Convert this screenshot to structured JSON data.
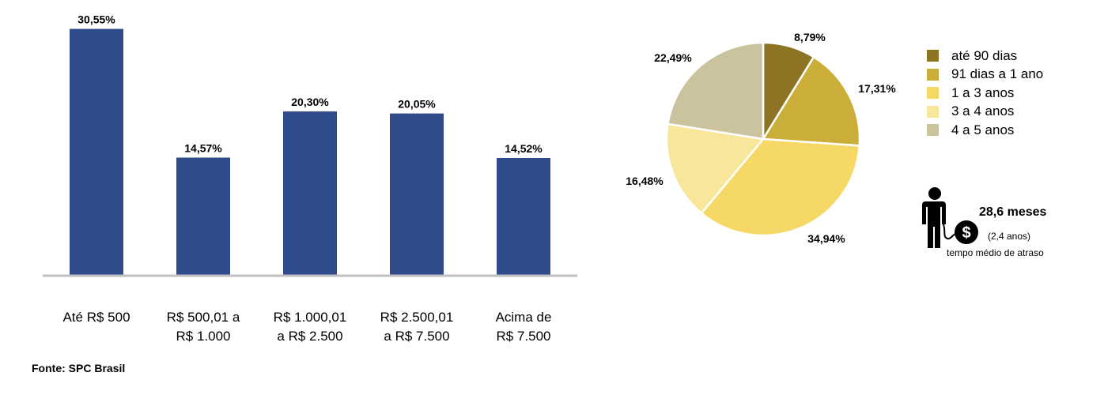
{
  "chart_data": [
    {
      "type": "bar",
      "categories": [
        [
          "Até R$ 500"
        ],
        [
          "R$ 500,01 a",
          "R$ 1.000"
        ],
        [
          "R$ 1.000,01",
          "a R$ 2.500"
        ],
        [
          "R$ 2.500,01",
          "a R$ 7.500"
        ],
        [
          "Acima de",
          "R$ 7.500"
        ]
      ],
      "values": [
        30.55,
        14.57,
        20.3,
        20.05,
        14.52
      ],
      "value_labels": [
        "30,55%",
        "14,57%",
        "20,30%",
        "20,05%",
        "14,52%"
      ],
      "ylim": [
        0,
        31
      ],
      "grid": false,
      "colors": {
        "bar": "#304B8C",
        "baseline": "#BFBFBF"
      }
    },
    {
      "type": "pie",
      "start": "top",
      "direction": "clockwise",
      "slices": [
        {
          "label": "até 90 dias",
          "value": 8.79,
          "value_label": "8,79%",
          "color": "#8C7424"
        },
        {
          "label": "91 dias a 1 ano",
          "value": 17.31,
          "value_label": "17,31%",
          "color": "#CBAE3A"
        },
        {
          "label": "1 a 3 anos",
          "value": 34.94,
          "value_label": "34,94%",
          "color": "#F6D866"
        },
        {
          "label": "3 a 4 anos",
          "value": 16.48,
          "value_label": "16,48%",
          "color": "#F8E79B"
        },
        {
          "label": "4 a 5 anos",
          "value": 22.49,
          "value_label": "22,49%",
          "color": "#CBC39D"
        }
      ],
      "legend_position": "right"
    }
  ],
  "callout": {
    "value": "28,6 meses",
    "years": "(2,4 anos)",
    "caption": "tempo médio de atraso",
    "icon": "person-with-dollar-icon"
  },
  "source": "Fonte: SPC Brasil"
}
